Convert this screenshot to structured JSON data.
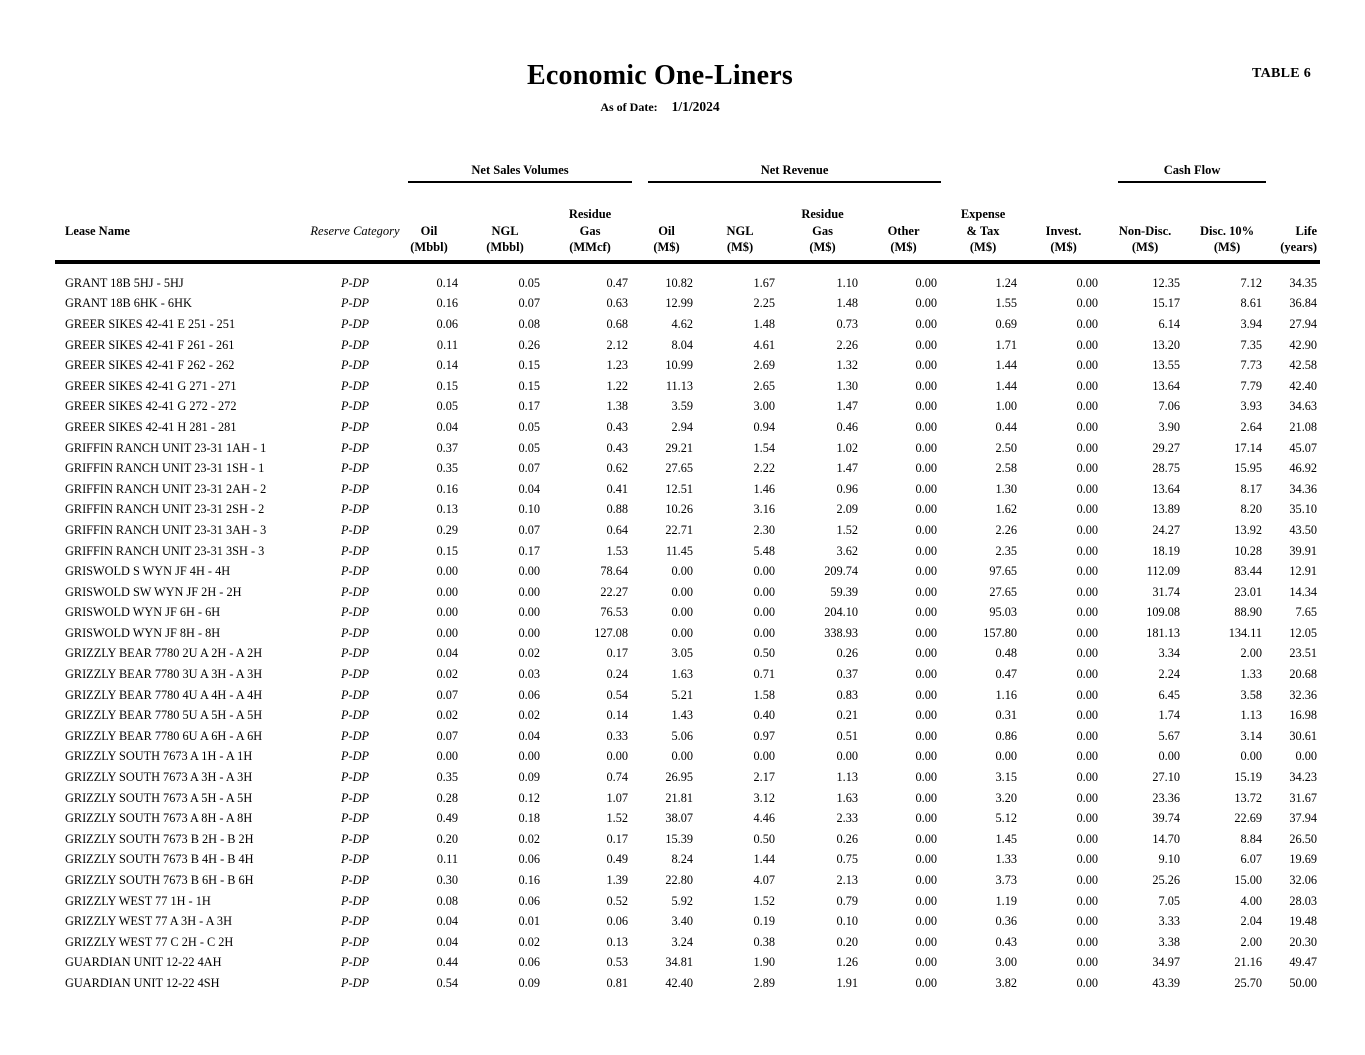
{
  "page": {
    "table_label": "TABLE 6",
    "title": "Economic One-Liners",
    "as_of_label": "As of Date:",
    "as_of_date": "1/1/2024"
  },
  "header": {
    "groups": {
      "volumes": "Net Sales Volumes",
      "revenue": "Net Revenue",
      "cashflow": "Cash Flow"
    },
    "cols": {
      "lease": "Lease Name",
      "category": "Reserve Category",
      "oil_vol": [
        "Oil",
        "(Mbbl)"
      ],
      "ngl_vol": [
        "NGL",
        "(Mbbl)"
      ],
      "res_vol": [
        "Residue",
        "Gas",
        "(MMcf)"
      ],
      "oil_rev": [
        "Oil",
        "(M$)"
      ],
      "ngl_rev": [
        "NGL",
        "(M$)"
      ],
      "res_rev": [
        "Residue",
        "Gas",
        "(M$)"
      ],
      "other_rev": [
        "Other",
        "(M$)"
      ],
      "expense": [
        "Expense",
        "& Tax",
        "(M$)"
      ],
      "invest": [
        "Invest.",
        "(M$)"
      ],
      "nondisc": [
        "Non-Disc.",
        "(M$)"
      ],
      "disc": [
        "Disc. 10%",
        "(M$)"
      ],
      "life": [
        "Life",
        "(years)"
      ]
    }
  },
  "report": {
    "rows": [
      {
        "name": "GRANT 18B 5HJ - 5HJ",
        "category": "P-DP",
        "v": [
          "0.14",
          "0.05",
          "0.47",
          "10.82",
          "1.67",
          "1.10",
          "0.00",
          "1.24",
          "0.00",
          "12.35",
          "7.12",
          "34.35"
        ]
      },
      {
        "name": "GRANT 18B 6HK - 6HK",
        "category": "P-DP",
        "v": [
          "0.16",
          "0.07",
          "0.63",
          "12.99",
          "2.25",
          "1.48",
          "0.00",
          "1.55",
          "0.00",
          "15.17",
          "8.61",
          "36.84"
        ]
      },
      {
        "name": "GREER SIKES 42-41 E 251 - 251",
        "category": "P-DP",
        "v": [
          "0.06",
          "0.08",
          "0.68",
          "4.62",
          "1.48",
          "0.73",
          "0.00",
          "0.69",
          "0.00",
          "6.14",
          "3.94",
          "27.94"
        ]
      },
      {
        "name": "GREER SIKES 42-41 F 261 - 261",
        "category": "P-DP",
        "v": [
          "0.11",
          "0.26",
          "2.12",
          "8.04",
          "4.61",
          "2.26",
          "0.00",
          "1.71",
          "0.00",
          "13.20",
          "7.35",
          "42.90"
        ]
      },
      {
        "name": "GREER SIKES 42-41 F 262 - 262",
        "category": "P-DP",
        "v": [
          "0.14",
          "0.15",
          "1.23",
          "10.99",
          "2.69",
          "1.32",
          "0.00",
          "1.44",
          "0.00",
          "13.55",
          "7.73",
          "42.58"
        ]
      },
      {
        "name": "GREER SIKES 42-41 G 271 - 271",
        "category": "P-DP",
        "v": [
          "0.15",
          "0.15",
          "1.22",
          "11.13",
          "2.65",
          "1.30",
          "0.00",
          "1.44",
          "0.00",
          "13.64",
          "7.79",
          "42.40"
        ]
      },
      {
        "name": "GREER SIKES 42-41 G 272 - 272",
        "category": "P-DP",
        "v": [
          "0.05",
          "0.17",
          "1.38",
          "3.59",
          "3.00",
          "1.47",
          "0.00",
          "1.00",
          "0.00",
          "7.06",
          "3.93",
          "34.63"
        ]
      },
      {
        "name": "GREER SIKES 42-41 H 281 - 281",
        "category": "P-DP",
        "v": [
          "0.04",
          "0.05",
          "0.43",
          "2.94",
          "0.94",
          "0.46",
          "0.00",
          "0.44",
          "0.00",
          "3.90",
          "2.64",
          "21.08"
        ]
      },
      {
        "name": "GRIFFIN RANCH UNIT 23-31 1AH - 1",
        "category": "P-DP",
        "v": [
          "0.37",
          "0.05",
          "0.43",
          "29.21",
          "1.54",
          "1.02",
          "0.00",
          "2.50",
          "0.00",
          "29.27",
          "17.14",
          "45.07"
        ]
      },
      {
        "name": "GRIFFIN RANCH UNIT 23-31 1SH - 1",
        "category": "P-DP",
        "v": [
          "0.35",
          "0.07",
          "0.62",
          "27.65",
          "2.22",
          "1.47",
          "0.00",
          "2.58",
          "0.00",
          "28.75",
          "15.95",
          "46.92"
        ]
      },
      {
        "name": "GRIFFIN RANCH UNIT 23-31 2AH - 2",
        "category": "P-DP",
        "v": [
          "0.16",
          "0.04",
          "0.41",
          "12.51",
          "1.46",
          "0.96",
          "0.00",
          "1.30",
          "0.00",
          "13.64",
          "8.17",
          "34.36"
        ]
      },
      {
        "name": "GRIFFIN RANCH UNIT 23-31 2SH - 2",
        "category": "P-DP",
        "v": [
          "0.13",
          "0.10",
          "0.88",
          "10.26",
          "3.16",
          "2.09",
          "0.00",
          "1.62",
          "0.00",
          "13.89",
          "8.20",
          "35.10"
        ]
      },
      {
        "name": "GRIFFIN RANCH UNIT 23-31 3AH - 3",
        "category": "P-DP",
        "v": [
          "0.29",
          "0.07",
          "0.64",
          "22.71",
          "2.30",
          "1.52",
          "0.00",
          "2.26",
          "0.00",
          "24.27",
          "13.92",
          "43.50"
        ]
      },
      {
        "name": "GRIFFIN RANCH UNIT 23-31 3SH - 3",
        "category": "P-DP",
        "v": [
          "0.15",
          "0.17",
          "1.53",
          "11.45",
          "5.48",
          "3.62",
          "0.00",
          "2.35",
          "0.00",
          "18.19",
          "10.28",
          "39.91"
        ]
      },
      {
        "name": "GRISWOLD S WYN JF 4H - 4H",
        "category": "P-DP",
        "v": [
          "0.00",
          "0.00",
          "78.64",
          "0.00",
          "0.00",
          "209.74",
          "0.00",
          "97.65",
          "0.00",
          "112.09",
          "83.44",
          "12.91"
        ]
      },
      {
        "name": "GRISWOLD SW WYN JF 2H - 2H",
        "category": "P-DP",
        "v": [
          "0.00",
          "0.00",
          "22.27",
          "0.00",
          "0.00",
          "59.39",
          "0.00",
          "27.65",
          "0.00",
          "31.74",
          "23.01",
          "14.34"
        ]
      },
      {
        "name": "GRISWOLD WYN JF 6H - 6H",
        "category": "P-DP",
        "v": [
          "0.00",
          "0.00",
          "76.53",
          "0.00",
          "0.00",
          "204.10",
          "0.00",
          "95.03",
          "0.00",
          "109.08",
          "88.90",
          "7.65"
        ]
      },
      {
        "name": "GRISWOLD WYN JF 8H - 8H",
        "category": "P-DP",
        "v": [
          "0.00",
          "0.00",
          "127.08",
          "0.00",
          "0.00",
          "338.93",
          "0.00",
          "157.80",
          "0.00",
          "181.13",
          "134.11",
          "12.05"
        ]
      },
      {
        "name": "GRIZZLY BEAR 7780 2U A 2H - A 2H",
        "category": "P-DP",
        "v": [
          "0.04",
          "0.02",
          "0.17",
          "3.05",
          "0.50",
          "0.26",
          "0.00",
          "0.48",
          "0.00",
          "3.34",
          "2.00",
          "23.51"
        ]
      },
      {
        "name": "GRIZZLY BEAR 7780 3U A 3H - A 3H",
        "category": "P-DP",
        "v": [
          "0.02",
          "0.03",
          "0.24",
          "1.63",
          "0.71",
          "0.37",
          "0.00",
          "0.47",
          "0.00",
          "2.24",
          "1.33",
          "20.68"
        ]
      },
      {
        "name": "GRIZZLY BEAR 7780 4U A 4H - A 4H",
        "category": "P-DP",
        "v": [
          "0.07",
          "0.06",
          "0.54",
          "5.21",
          "1.58",
          "0.83",
          "0.00",
          "1.16",
          "0.00",
          "6.45",
          "3.58",
          "32.36"
        ]
      },
      {
        "name": "GRIZZLY BEAR 7780 5U A 5H - A 5H",
        "category": "P-DP",
        "v": [
          "0.02",
          "0.02",
          "0.14",
          "1.43",
          "0.40",
          "0.21",
          "0.00",
          "0.31",
          "0.00",
          "1.74",
          "1.13",
          "16.98"
        ]
      },
      {
        "name": "GRIZZLY BEAR 7780 6U A 6H - A 6H",
        "category": "P-DP",
        "v": [
          "0.07",
          "0.04",
          "0.33",
          "5.06",
          "0.97",
          "0.51",
          "0.00",
          "0.86",
          "0.00",
          "5.67",
          "3.14",
          "30.61"
        ]
      },
      {
        "name": "GRIZZLY SOUTH 7673 A 1H - A 1H",
        "category": "P-DP",
        "v": [
          "0.00",
          "0.00",
          "0.00",
          "0.00",
          "0.00",
          "0.00",
          "0.00",
          "0.00",
          "0.00",
          "0.00",
          "0.00",
          "0.00"
        ]
      },
      {
        "name": "GRIZZLY SOUTH 7673 A 3H - A 3H",
        "category": "P-DP",
        "v": [
          "0.35",
          "0.09",
          "0.74",
          "26.95",
          "2.17",
          "1.13",
          "0.00",
          "3.15",
          "0.00",
          "27.10",
          "15.19",
          "34.23"
        ]
      },
      {
        "name": "GRIZZLY SOUTH 7673 A 5H - A 5H",
        "category": "P-DP",
        "v": [
          "0.28",
          "0.12",
          "1.07",
          "21.81",
          "3.12",
          "1.63",
          "0.00",
          "3.20",
          "0.00",
          "23.36",
          "13.72",
          "31.67"
        ]
      },
      {
        "name": "GRIZZLY SOUTH 7673 A 8H - A 8H",
        "category": "P-DP",
        "v": [
          "0.49",
          "0.18",
          "1.52",
          "38.07",
          "4.46",
          "2.33",
          "0.00",
          "5.12",
          "0.00",
          "39.74",
          "22.69",
          "37.94"
        ]
      },
      {
        "name": "GRIZZLY SOUTH 7673 B 2H - B 2H",
        "category": "P-DP",
        "v": [
          "0.20",
          "0.02",
          "0.17",
          "15.39",
          "0.50",
          "0.26",
          "0.00",
          "1.45",
          "0.00",
          "14.70",
          "8.84",
          "26.50"
        ]
      },
      {
        "name": "GRIZZLY SOUTH 7673 B 4H - B 4H",
        "category": "P-DP",
        "v": [
          "0.11",
          "0.06",
          "0.49",
          "8.24",
          "1.44",
          "0.75",
          "0.00",
          "1.33",
          "0.00",
          "9.10",
          "6.07",
          "19.69"
        ]
      },
      {
        "name": "GRIZZLY SOUTH 7673 B 6H - B 6H",
        "category": "P-DP",
        "v": [
          "0.30",
          "0.16",
          "1.39",
          "22.80",
          "4.07",
          "2.13",
          "0.00",
          "3.73",
          "0.00",
          "25.26",
          "15.00",
          "32.06"
        ]
      },
      {
        "name": "GRIZZLY WEST 77 1H - 1H",
        "category": "P-DP",
        "v": [
          "0.08",
          "0.06",
          "0.52",
          "5.92",
          "1.52",
          "0.79",
          "0.00",
          "1.19",
          "0.00",
          "7.05",
          "4.00",
          "28.03"
        ]
      },
      {
        "name": "GRIZZLY WEST 77 A 3H - A 3H",
        "category": "P-DP",
        "v": [
          "0.04",
          "0.01",
          "0.06",
          "3.40",
          "0.19",
          "0.10",
          "0.00",
          "0.36",
          "0.00",
          "3.33",
          "2.04",
          "19.48"
        ]
      },
      {
        "name": "GRIZZLY WEST 77 C 2H - C 2H",
        "category": "P-DP",
        "v": [
          "0.04",
          "0.02",
          "0.13",
          "3.24",
          "0.38",
          "0.20",
          "0.00",
          "0.43",
          "0.00",
          "3.38",
          "2.00",
          "20.30"
        ]
      },
      {
        "name": "GUARDIAN UNIT 12-22 4AH",
        "category": "P-DP",
        "v": [
          "0.44",
          "0.06",
          "0.53",
          "34.81",
          "1.90",
          "1.26",
          "0.00",
          "3.00",
          "0.00",
          "34.97",
          "21.16",
          "49.47"
        ]
      },
      {
        "name": "GUARDIAN UNIT 12-22 4SH",
        "category": "P-DP",
        "v": [
          "0.54",
          "0.09",
          "0.81",
          "42.40",
          "2.89",
          "1.91",
          "0.00",
          "3.82",
          "0.00",
          "43.39",
          "25.70",
          "50.00"
        ]
      }
    ]
  }
}
